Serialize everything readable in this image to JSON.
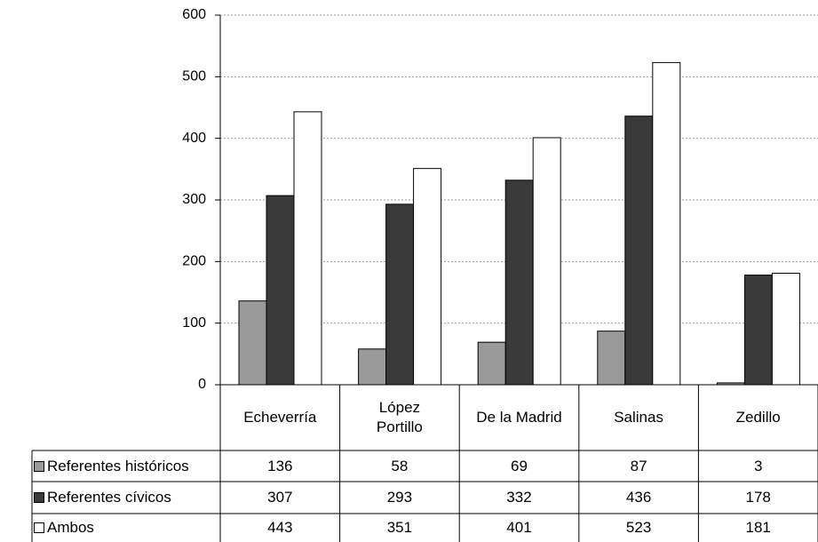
{
  "chart_data": {
    "type": "bar",
    "categories": [
      "Echeverría",
      "López Portillo",
      "De la Madrid",
      "Salinas",
      "Zedillo"
    ],
    "series": [
      {
        "name": "Referentes históricos",
        "color": "#9a9a9a",
        "values": [
          136,
          58,
          69,
          87,
          3
        ]
      },
      {
        "name": "Referentes cívicos",
        "color": "#3a3a3a",
        "values": [
          307,
          293,
          332,
          436,
          178
        ]
      },
      {
        "name": "Ambos",
        "color": "#ffffff",
        "values": [
          443,
          351,
          401,
          523,
          181
        ]
      }
    ],
    "ylim": [
      0,
      600
    ],
    "yticks": [
      0,
      100,
      200,
      300,
      400,
      500,
      600
    ],
    "grid": true
  }
}
